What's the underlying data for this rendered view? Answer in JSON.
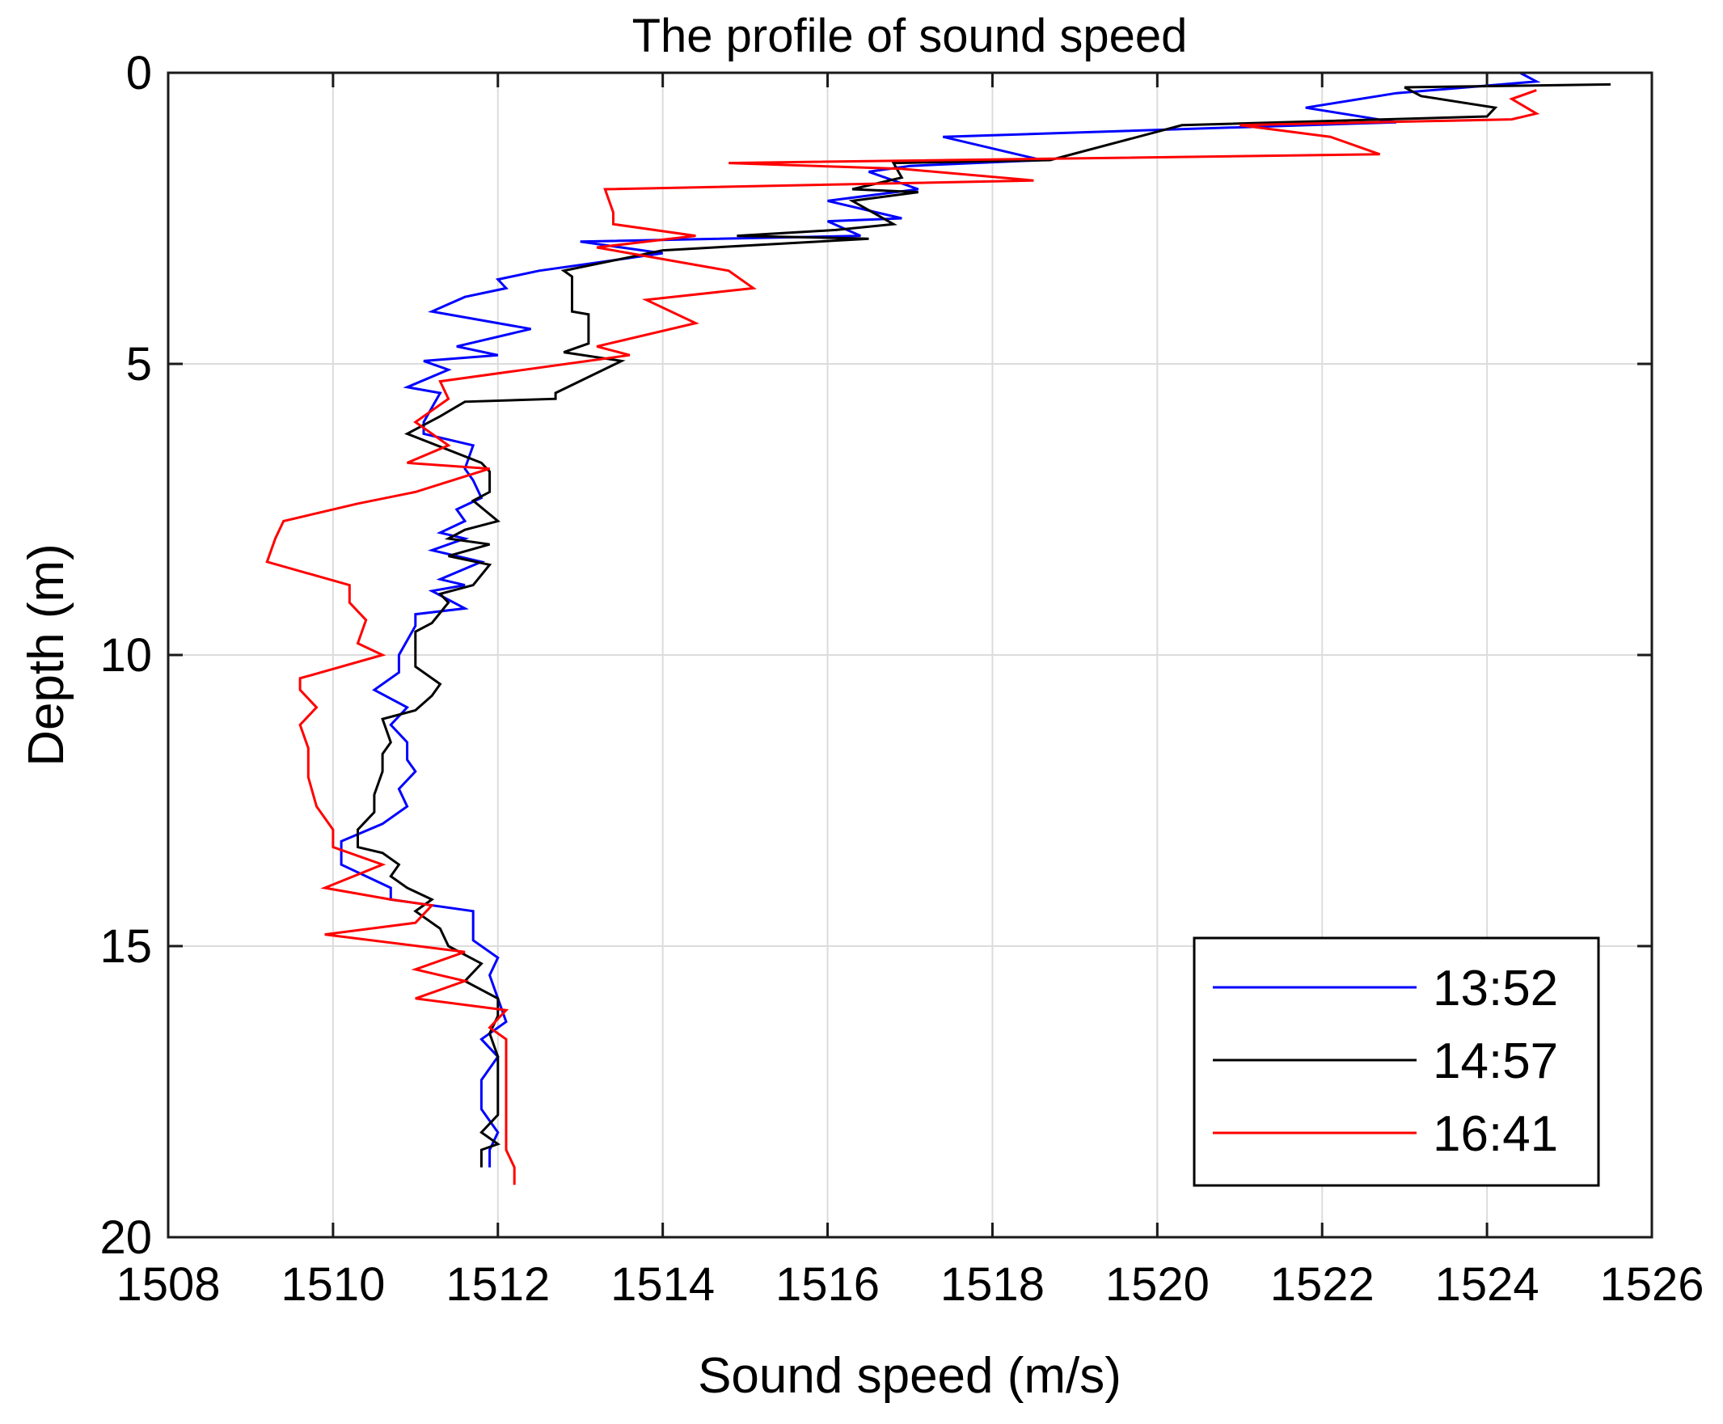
{
  "chart_data": {
    "type": "line",
    "title": "The profile of sound speed",
    "xlabel": "Sound speed (m/s)",
    "ylabel": "Depth (m)",
    "xlim": [
      1508,
      1526
    ],
    "ylim": [
      0,
      20
    ],
    "y_reversed": true,
    "grid": true,
    "legend_position": "bottom-right",
    "x_ticks": [
      "1508",
      "1510",
      "1512",
      "1514",
      "1516",
      "1518",
      "1520",
      "1522",
      "1524",
      "1526"
    ],
    "y_ticks": [
      "0",
      "5",
      "10",
      "15",
      "20"
    ],
    "series": [
      {
        "name": "13:52",
        "color": "#0000ff",
        "points": [
          [
            1524.4,
            0
          ],
          [
            1524.6,
            0.15
          ],
          [
            1522.9,
            0.35
          ],
          [
            1521.8,
            0.6
          ],
          [
            1522.9,
            0.85
          ],
          [
            1517.4,
            1.1
          ],
          [
            1518.6,
            1.5
          ],
          [
            1517.0,
            1.6
          ],
          [
            1516.5,
            1.7
          ],
          [
            1517.1,
            2.0
          ],
          [
            1516.0,
            2.2
          ],
          [
            1516.9,
            2.5
          ],
          [
            1516.0,
            2.55
          ],
          [
            1516.4,
            2.8
          ],
          [
            1513.0,
            2.9
          ],
          [
            1514.0,
            3.1
          ],
          [
            1512.5,
            3.4
          ],
          [
            1512.0,
            3.55
          ],
          [
            1512.1,
            3.7
          ],
          [
            1511.6,
            3.85
          ],
          [
            1511.2,
            4.1
          ],
          [
            1512.4,
            4.4
          ],
          [
            1511.5,
            4.7
          ],
          [
            1512.0,
            4.85
          ],
          [
            1511.1,
            4.95
          ],
          [
            1511.4,
            5.1
          ],
          [
            1510.9,
            5.4
          ],
          [
            1511.3,
            5.5
          ],
          [
            1511.1,
            6.0
          ],
          [
            1511.1,
            6.2
          ],
          [
            1511.7,
            6.4
          ],
          [
            1511.6,
            6.8
          ],
          [
            1511.7,
            7.0
          ],
          [
            1511.8,
            7.3
          ],
          [
            1511.5,
            7.5
          ],
          [
            1511.6,
            7.7
          ],
          [
            1511.3,
            7.9
          ],
          [
            1511.6,
            8.0
          ],
          [
            1511.2,
            8.2
          ],
          [
            1511.8,
            8.4
          ],
          [
            1511.3,
            8.7
          ],
          [
            1511.6,
            8.8
          ],
          [
            1511.2,
            8.9
          ],
          [
            1511.6,
            9.2
          ],
          [
            1511.0,
            9.3
          ],
          [
            1511.0,
            9.5
          ],
          [
            1510.8,
            10.0
          ],
          [
            1510.8,
            10.3
          ],
          [
            1510.5,
            10.6
          ],
          [
            1510.9,
            10.9
          ],
          [
            1510.7,
            11.2
          ],
          [
            1510.9,
            11.5
          ],
          [
            1510.9,
            11.8
          ],
          [
            1511.0,
            12.0
          ],
          [
            1510.8,
            12.3
          ],
          [
            1510.9,
            12.6
          ],
          [
            1510.6,
            12.9
          ],
          [
            1510.1,
            13.2
          ],
          [
            1510.1,
            13.6
          ],
          [
            1510.7,
            14.0
          ],
          [
            1510.7,
            14.2
          ],
          [
            1511.7,
            14.4
          ],
          [
            1511.7,
            14.9
          ],
          [
            1512.0,
            15.2
          ],
          [
            1511.9,
            15.5
          ],
          [
            1512.0,
            15.9
          ],
          [
            1512.1,
            16.3
          ],
          [
            1511.8,
            16.6
          ],
          [
            1512.0,
            16.9
          ],
          [
            1511.8,
            17.3
          ],
          [
            1511.8,
            17.8
          ],
          [
            1512.0,
            18.2
          ],
          [
            1511.9,
            18.5
          ],
          [
            1511.9,
            18.8
          ]
        ]
      },
      {
        "name": "14:57",
        "color": "#000000",
        "points": [
          [
            1525.5,
            0.2
          ],
          [
            1523.0,
            0.25
          ],
          [
            1523.2,
            0.4
          ],
          [
            1524.1,
            0.6
          ],
          [
            1524.0,
            0.75
          ],
          [
            1520.3,
            0.9
          ],
          [
            1518.7,
            1.5
          ],
          [
            1516.8,
            1.55
          ],
          [
            1516.9,
            1.8
          ],
          [
            1516.3,
            2.0
          ],
          [
            1517.1,
            2.05
          ],
          [
            1516.3,
            2.2
          ],
          [
            1516.8,
            2.6
          ],
          [
            1516.1,
            2.7
          ],
          [
            1514.9,
            2.8
          ],
          [
            1516.5,
            2.85
          ],
          [
            1514.0,
            3.05
          ],
          [
            1512.8,
            3.4
          ],
          [
            1512.9,
            3.5
          ],
          [
            1512.9,
            4.1
          ],
          [
            1513.1,
            4.15
          ],
          [
            1513.1,
            4.65
          ],
          [
            1512.8,
            4.8
          ],
          [
            1513.5,
            4.95
          ],
          [
            1512.7,
            5.5
          ],
          [
            1512.7,
            5.6
          ],
          [
            1511.6,
            5.65
          ],
          [
            1511.3,
            5.9
          ],
          [
            1510.9,
            6.2
          ],
          [
            1511.8,
            6.7
          ],
          [
            1511.9,
            6.85
          ],
          [
            1511.9,
            7.2
          ],
          [
            1511.7,
            7.35
          ],
          [
            1512.0,
            7.7
          ],
          [
            1511.6,
            7.85
          ],
          [
            1511.4,
            8.0
          ],
          [
            1511.9,
            8.1
          ],
          [
            1511.4,
            8.3
          ],
          [
            1511.9,
            8.45
          ],
          [
            1511.7,
            8.8
          ],
          [
            1511.3,
            8.95
          ],
          [
            1511.4,
            9.1
          ],
          [
            1511.2,
            9.45
          ],
          [
            1511.0,
            9.6
          ],
          [
            1511.0,
            10.2
          ],
          [
            1511.3,
            10.5
          ],
          [
            1511.2,
            10.7
          ],
          [
            1511.0,
            10.95
          ],
          [
            1510.6,
            11.1
          ],
          [
            1510.7,
            11.5
          ],
          [
            1510.6,
            11.7
          ],
          [
            1510.6,
            12.0
          ],
          [
            1510.5,
            12.4
          ],
          [
            1510.5,
            12.7
          ],
          [
            1510.3,
            13.0
          ],
          [
            1510.3,
            13.3
          ],
          [
            1510.6,
            13.4
          ],
          [
            1510.8,
            13.6
          ],
          [
            1510.7,
            13.8
          ],
          [
            1510.9,
            14.0
          ],
          [
            1511.2,
            14.2
          ],
          [
            1511.0,
            14.4
          ],
          [
            1511.3,
            14.7
          ],
          [
            1511.4,
            15.0
          ],
          [
            1511.8,
            15.3
          ],
          [
            1511.6,
            15.6
          ],
          [
            1512.0,
            15.9
          ],
          [
            1512.0,
            16.2
          ],
          [
            1511.9,
            16.5
          ],
          [
            1512.0,
            16.9
          ],
          [
            1512.0,
            17.3
          ],
          [
            1512.0,
            17.6
          ],
          [
            1512.0,
            17.9
          ],
          [
            1511.8,
            18.2
          ],
          [
            1512.0,
            18.4
          ],
          [
            1511.8,
            18.5
          ],
          [
            1511.8,
            18.8
          ]
        ]
      },
      {
        "name": "16:41",
        "color": "#ff0000",
        "points": [
          [
            1524.6,
            0.3
          ],
          [
            1524.3,
            0.45
          ],
          [
            1524.6,
            0.7
          ],
          [
            1524.3,
            0.8
          ],
          [
            1521.0,
            0.9
          ],
          [
            1522.1,
            1.1
          ],
          [
            1522.7,
            1.4
          ],
          [
            1514.8,
            1.55
          ],
          [
            1516.9,
            1.65
          ],
          [
            1518.5,
            1.85
          ],
          [
            1513.3,
            2.0
          ],
          [
            1513.4,
            2.4
          ],
          [
            1513.4,
            2.6
          ],
          [
            1514.4,
            2.8
          ],
          [
            1513.2,
            3.0
          ],
          [
            1514.8,
            3.4
          ],
          [
            1515.1,
            3.7
          ],
          [
            1513.8,
            3.9
          ],
          [
            1514.4,
            4.3
          ],
          [
            1513.2,
            4.7
          ],
          [
            1513.6,
            4.85
          ],
          [
            1511.3,
            5.3
          ],
          [
            1511.4,
            5.6
          ],
          [
            1511.0,
            6.0
          ],
          [
            1511.4,
            6.4
          ],
          [
            1510.9,
            6.7
          ],
          [
            1511.9,
            6.8
          ],
          [
            1511.0,
            7.2
          ],
          [
            1510.3,
            7.4
          ],
          [
            1509.4,
            7.7
          ],
          [
            1509.3,
            8.0
          ],
          [
            1509.2,
            8.4
          ],
          [
            1510.2,
            8.8
          ],
          [
            1510.2,
            9.1
          ],
          [
            1510.4,
            9.4
          ],
          [
            1510.3,
            9.8
          ],
          [
            1510.6,
            10.0
          ],
          [
            1509.6,
            10.4
          ],
          [
            1509.6,
            10.6
          ],
          [
            1509.8,
            10.9
          ],
          [
            1509.6,
            11.2
          ],
          [
            1509.7,
            11.6
          ],
          [
            1509.7,
            12.1
          ],
          [
            1509.8,
            12.6
          ],
          [
            1510.0,
            13.0
          ],
          [
            1510.0,
            13.3
          ],
          [
            1510.6,
            13.6
          ],
          [
            1509.9,
            14.0
          ],
          [
            1510.7,
            14.2
          ],
          [
            1511.2,
            14.3
          ],
          [
            1511.0,
            14.6
          ],
          [
            1509.9,
            14.8
          ],
          [
            1511.6,
            15.1
          ],
          [
            1511.0,
            15.4
          ],
          [
            1511.6,
            15.6
          ],
          [
            1511.0,
            15.9
          ],
          [
            1512.1,
            16.1
          ],
          [
            1511.9,
            16.4
          ],
          [
            1512.1,
            16.6
          ],
          [
            1512.1,
            17.2
          ],
          [
            1512.1,
            17.9
          ],
          [
            1512.1,
            18.5
          ],
          [
            1512.2,
            18.8
          ],
          [
            1512.2,
            19.1
          ]
        ]
      }
    ]
  }
}
